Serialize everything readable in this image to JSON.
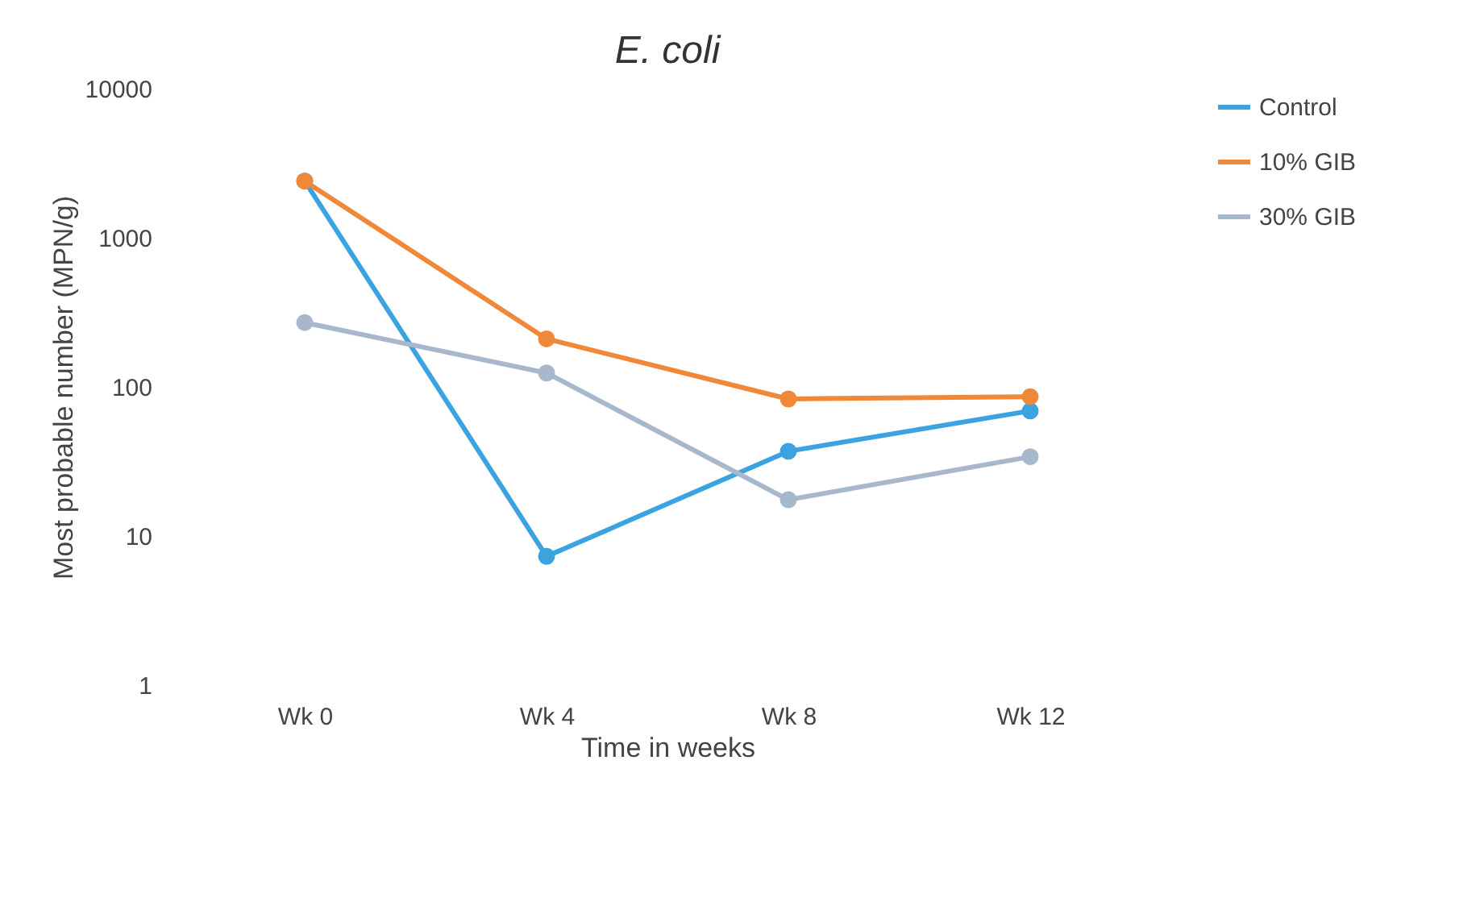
{
  "chart_data": {
    "type": "line",
    "title": "E. coli",
    "xlabel": "Time in weeks",
    "ylabel": "Most probable number (MPN/g)",
    "categories": [
      "Wk 0",
      "Wk 4",
      "Wk 8",
      "Wk 12"
    ],
    "series": [
      {
        "name": "Control",
        "color": "#3ba3e0",
        "values": [
          2400,
          7.3,
          37,
          69
        ]
      },
      {
        "name": "10% GIB",
        "color": "#f0883a",
        "values": [
          2400,
          210,
          83,
          86
        ]
      },
      {
        "name": "30% GIB",
        "color": "#a8b8cc",
        "values": [
          270,
          124,
          17.5,
          34
        ]
      }
    ],
    "log": "y",
    "ylim": [
      1,
      10000
    ],
    "yticks": [
      1,
      10,
      100,
      1000,
      10000
    ],
    "grid": false,
    "legend": "right",
    "marker": "circle",
    "line_style": "solid"
  }
}
